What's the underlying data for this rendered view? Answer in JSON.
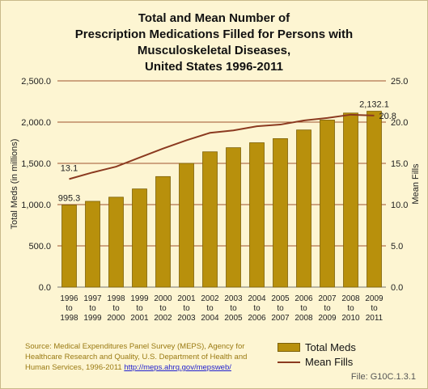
{
  "chart_data": {
    "type": "bar",
    "title_lines": [
      "Total and Mean Number of",
      "Prescription Medications Filled for Persons with",
      "Musculoskeletal Diseases,",
      "United States 1996-2011"
    ],
    "categories": [
      [
        "1996",
        "to",
        "1998"
      ],
      [
        "1997",
        "to",
        "1999"
      ],
      [
        "1998",
        "to",
        "2000"
      ],
      [
        "1999",
        "to",
        "2001"
      ],
      [
        "2000",
        "to",
        "2002"
      ],
      [
        "2001",
        "to",
        "2003"
      ],
      [
        "2002",
        "to",
        "2004"
      ],
      [
        "2003",
        "to",
        "2005"
      ],
      [
        "2004",
        "to",
        "2006"
      ],
      [
        "2005",
        "to",
        "2007"
      ],
      [
        "2006",
        "to",
        "2008"
      ],
      [
        "2007",
        "to",
        "2009"
      ],
      [
        "2008",
        "to",
        "2010"
      ],
      [
        "2009",
        "to",
        "2011"
      ]
    ],
    "ylabel": "Total Meds (in millions)",
    "y2label": "Mean Fills",
    "ylim": [
      0,
      2500
    ],
    "y2lim": [
      0,
      25
    ],
    "yticks": [
      "0.0",
      "500.0",
      "1,000.0",
      "1,500.0",
      "2,000.0",
      "2,500.0"
    ],
    "y2ticks": [
      "0.0",
      "5.0",
      "10.0",
      "15.0",
      "20.0",
      "25.0"
    ],
    "grid": true,
    "legend_position": "bottom-right",
    "series": [
      {
        "name": "Total Meds",
        "type": "bar",
        "axis": "left",
        "color": "#b8900c",
        "values": [
          995.3,
          1040,
          1090,
          1190,
          1340,
          1500,
          1640,
          1690,
          1750,
          1800,
          1905,
          2025,
          2110,
          2132.1
        ]
      },
      {
        "name": "Mean Fills",
        "type": "line",
        "axis": "right",
        "color": "#8b3a20",
        "values": [
          13.1,
          13.9,
          14.6,
          15.7,
          16.8,
          17.8,
          18.7,
          19.0,
          19.5,
          19.7,
          20.2,
          20.5,
          20.9,
          20.8
        ]
      }
    ],
    "data_labels": [
      {
        "series": 0,
        "index": 0,
        "text": "995.3"
      },
      {
        "series": 0,
        "index": 13,
        "text": "2,132.1"
      },
      {
        "series": 1,
        "index": 0,
        "text": "13.1"
      },
      {
        "series": 1,
        "index": 13,
        "text": "20.8"
      }
    ]
  },
  "source": {
    "text": "Source: Medical Expenditures Panel Survey (MEPS), Agency for Healthcare Research and Quality, U.S. Department of Health and Human Services, 1996-2011 ",
    "link": "http://meps.ahrq.gov/mepsweb/"
  },
  "file_id": "File: G10C.1.3.1",
  "colors": {
    "background": "#fdf5d2",
    "gridline": "#a0522d",
    "bar": "#b8900c",
    "line": "#8b3a20"
  }
}
